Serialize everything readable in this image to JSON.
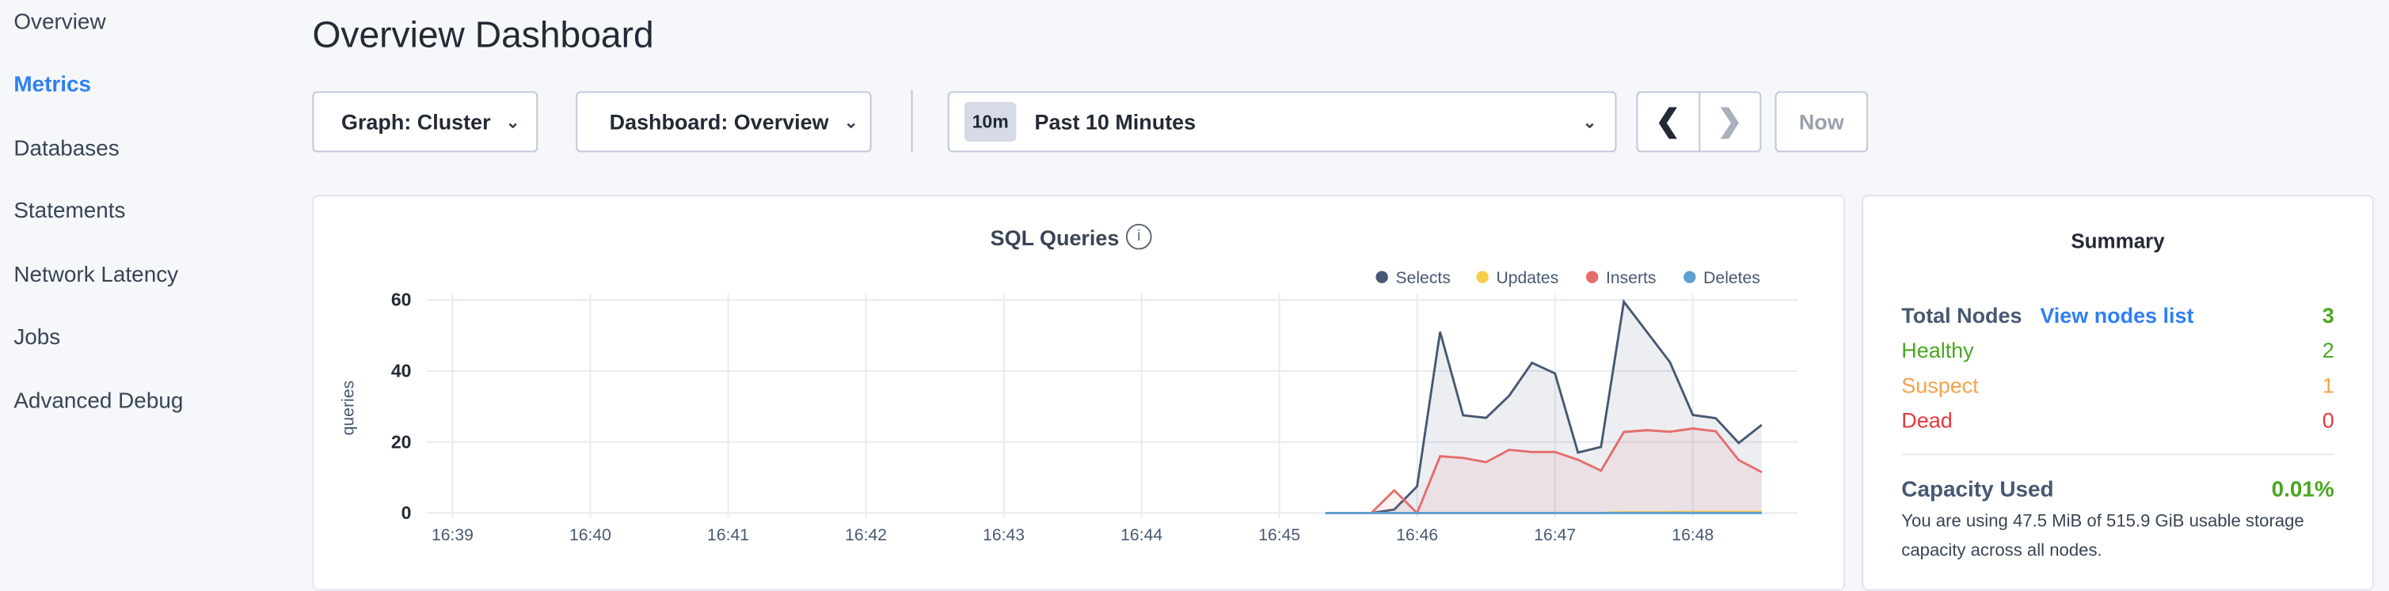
{
  "sidebar": {
    "items": [
      {
        "label": "Overview",
        "active": false
      },
      {
        "label": "Metrics",
        "active": true
      },
      {
        "label": "Databases",
        "active": false
      },
      {
        "label": "Statements",
        "active": false
      },
      {
        "label": "Network Latency",
        "active": false
      },
      {
        "label": "Jobs",
        "active": false
      },
      {
        "label": "Advanced Debug",
        "active": false
      }
    ]
  },
  "header": {
    "title": "Overview Dashboard"
  },
  "toolbar": {
    "graph_select": "Graph: Cluster",
    "dashboard_select": "Dashboard: Overview",
    "time_badge": "10m",
    "time_range": "Past 10 Minutes",
    "prev_icon": "chevron-left-icon",
    "next_icon": "chevron-right-icon",
    "now_label": "Now"
  },
  "chart_data": {
    "type": "area",
    "title": "SQL Queries",
    "ylabel": "queries",
    "xlabel": "",
    "ylim": [
      0,
      60
    ],
    "yticks": [
      "0",
      "20",
      "40",
      "60"
    ],
    "xticks": [
      "16:39",
      "16:40",
      "16:41",
      "16:42",
      "16:43",
      "16:44",
      "16:45",
      "16:46",
      "16:47",
      "16:48"
    ],
    "grid": true,
    "legend_placement": "top-right",
    "x": [
      "16:45:20",
      "16:45:30",
      "16:45:40",
      "16:45:50",
      "16:46:00",
      "16:46:10",
      "16:46:20",
      "16:46:30",
      "16:46:40",
      "16:46:50",
      "16:47:00",
      "16:47:10",
      "16:47:20",
      "16:47:30",
      "16:47:40",
      "16:47:50",
      "16:48:00",
      "16:48:10",
      "16:48:20",
      "16:48:30"
    ],
    "series": [
      {
        "name": "Selects",
        "color": "#475872",
        "values": [
          0,
          0,
          0,
          1,
          7.5,
          51,
          27.5,
          26.8,
          33,
          42.3,
          39.3,
          17,
          18.6,
          59.5,
          51,
          42.5,
          27.6,
          26.7,
          19.7,
          24.8
        ]
      },
      {
        "name": "Updates",
        "color": "#f7ce4a",
        "values": [
          0,
          0,
          0,
          0,
          0,
          0,
          0,
          0,
          0,
          0,
          0,
          0,
          0,
          0.2,
          0.2,
          0.2,
          0.3,
          0.3,
          0.3,
          0.3
        ]
      },
      {
        "name": "Inserts",
        "color": "#e46e6b",
        "values": [
          0,
          0,
          0,
          6.4,
          0,
          16,
          15.5,
          14.3,
          17.8,
          17.2,
          17.2,
          15,
          11.9,
          22.8,
          23.3,
          22.9,
          23.8,
          23,
          14.9,
          11.5
        ]
      },
      {
        "name": "Deletes",
        "color": "#5c9fd1",
        "values": [
          0,
          0,
          0,
          0,
          0,
          0,
          0,
          0,
          0,
          0,
          0,
          0,
          0,
          0,
          0,
          0,
          0,
          0,
          0,
          0
        ]
      }
    ]
  },
  "chart_info_icon": "info-icon",
  "summary": {
    "title": "Summary",
    "total_nodes_label": "Total Nodes",
    "view_nodes_link": "View nodes list",
    "total_nodes": "3",
    "healthy_label": "Healthy",
    "healthy": "2",
    "suspect_label": "Suspect",
    "suspect": "1",
    "dead_label": "Dead",
    "dead": "0",
    "capacity_label": "Capacity Used",
    "capacity_value": "0.01%",
    "capacity_text": "You are using 47.5 MiB of 515.9 GiB usable storage capacity across all nodes.",
    "colors": {
      "healthy": "#4aa621",
      "suspect": "#f5a24a",
      "dead": "#e5383f",
      "link": "#2f7ff5"
    }
  }
}
